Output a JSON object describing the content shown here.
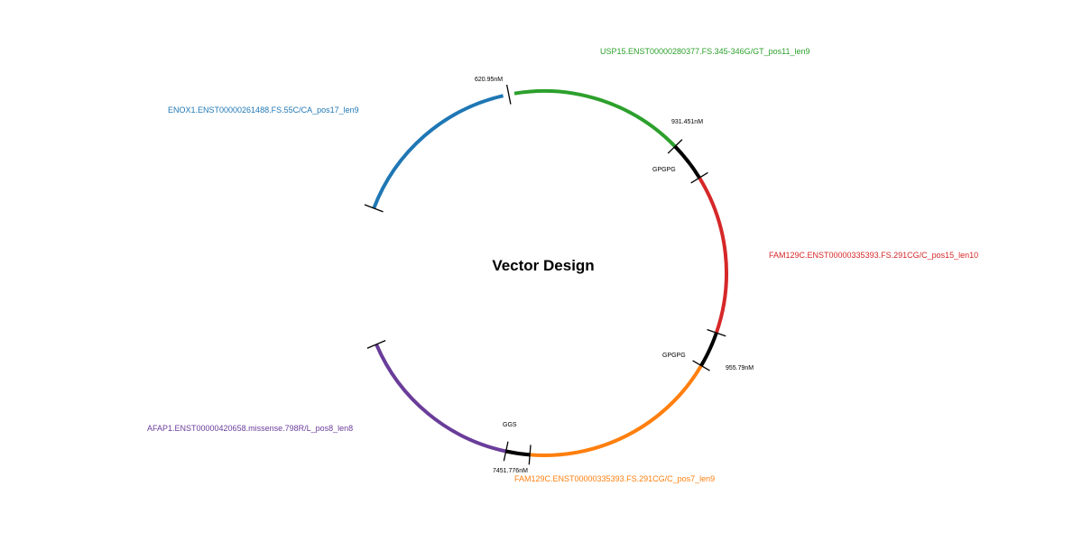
{
  "title": "Vector Design",
  "segments": [
    {
      "id": "seg-enox1",
      "label": "ENOX1.ENST00000261488.FS.55C/CA_pos17_len9",
      "color": "#1f77b4",
      "kind": "epitope"
    },
    {
      "id": "seg-usp15",
      "label": "USP15.ENST00000280377.FS.345-346G/GT_pos11_len9",
      "color": "#2ca02c",
      "kind": "epitope"
    },
    {
      "id": "seg-linker-1",
      "label": "GPGPG",
      "color": "#000000",
      "kind": "linker"
    },
    {
      "id": "seg-fam129c-a",
      "label": "FAM129C.ENST00000335393.FS.291CG/C_pos15_len10",
      "color": "#d62728",
      "kind": "epitope"
    },
    {
      "id": "seg-linker-2",
      "label": "GPGPG",
      "color": "#000000",
      "kind": "linker"
    },
    {
      "id": "seg-fam129c-b",
      "label": "FAM129C.ENST00000335393.FS.291CG/C_pos7_len9",
      "color": "#ff7f0e",
      "kind": "epitope"
    },
    {
      "id": "seg-linker-3",
      "label": "GGS",
      "color": "#000000",
      "kind": "linker"
    },
    {
      "id": "seg-afap1",
      "label": "AFAP1.ENST00000420658.missense.798R/L_pos8_len8",
      "color": "#6a3d9a",
      "kind": "epitope"
    }
  ],
  "junction_labels": [
    {
      "id": "junction-enox1-usp15",
      "text": "620.95nM"
    },
    {
      "id": "junction-usp15-linker",
      "text": "931.451nM"
    },
    {
      "id": "junction-linker2-fam129c",
      "text": "955.79nM"
    },
    {
      "id": "junction-linker3-afap1",
      "text": "7451.776nM"
    }
  ]
}
